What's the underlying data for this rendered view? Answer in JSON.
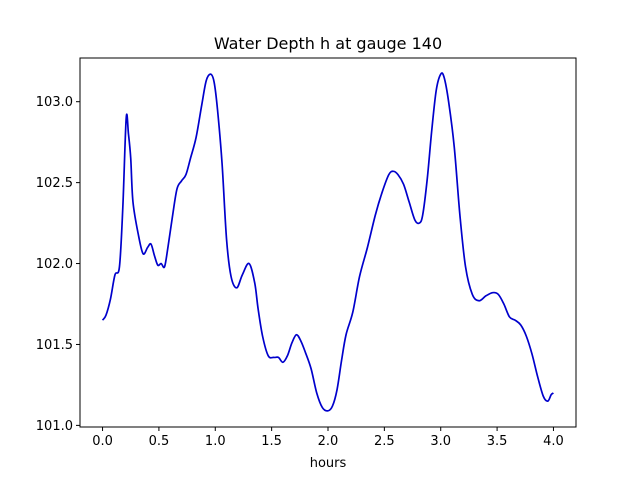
{
  "chart_data": {
    "type": "line",
    "title": "Water Depth h at gauge 140",
    "xlabel": "hours",
    "ylabel": "",
    "xlim": [
      -0.2,
      4.2
    ],
    "ylim": [
      100.99,
      103.27
    ],
    "grid": false,
    "x_ticks": [
      0.0,
      0.5,
      1.0,
      1.5,
      2.0,
      2.5,
      3.0,
      3.5,
      4.0
    ],
    "x_tick_labels": [
      "0.0",
      "0.5",
      "1.0",
      "1.5",
      "2.0",
      "2.5",
      "3.0",
      "3.5",
      "4.0"
    ],
    "y_ticks": [
      101.0,
      101.5,
      102.0,
      102.5,
      103.0
    ],
    "y_tick_labels": [
      "101.0",
      "101.5",
      "102.0",
      "102.5",
      "103.0"
    ],
    "series": [
      {
        "name": "",
        "color": "#0000cc",
        "x": [
          0.0,
          0.03,
          0.07,
          0.11,
          0.15,
          0.18,
          0.21,
          0.23,
          0.25,
          0.27,
          0.32,
          0.36,
          0.4,
          0.43,
          0.46,
          0.49,
          0.52,
          0.55,
          0.58,
          0.62,
          0.66,
          0.7,
          0.74,
          0.78,
          0.83,
          0.88,
          0.92,
          0.96,
          0.99,
          1.02,
          1.06,
          1.1,
          1.14,
          1.19,
          1.24,
          1.3,
          1.35,
          1.38,
          1.42,
          1.47,
          1.52,
          1.56,
          1.6,
          1.64,
          1.68,
          1.72,
          1.76,
          1.8,
          1.85,
          1.9,
          1.95,
          2.0,
          2.04,
          2.08,
          2.12,
          2.16,
          2.22,
          2.28,
          2.35,
          2.42,
          2.48,
          2.54,
          2.58,
          2.62,
          2.67,
          2.72,
          2.77,
          2.81,
          2.84,
          2.88,
          2.92,
          2.96,
          3.0,
          3.03,
          3.07,
          3.12,
          3.17,
          3.22,
          3.28,
          3.34,
          3.4,
          3.46,
          3.51,
          3.56,
          3.61,
          3.66,
          3.71,
          3.76,
          3.81,
          3.86,
          3.91,
          3.95,
          3.98,
          4.0
        ],
        "y": [
          101.65,
          101.68,
          101.78,
          101.93,
          101.98,
          102.35,
          102.9,
          102.8,
          102.65,
          102.38,
          102.17,
          102.06,
          102.1,
          102.12,
          102.05,
          101.99,
          102.0,
          101.98,
          102.1,
          102.29,
          102.46,
          102.51,
          102.55,
          102.65,
          102.78,
          102.98,
          103.13,
          103.17,
          103.12,
          102.95,
          102.62,
          102.15,
          101.92,
          101.85,
          101.93,
          102.0,
          101.88,
          101.72,
          101.55,
          101.43,
          101.42,
          101.42,
          101.39,
          101.43,
          101.51,
          101.56,
          101.52,
          101.45,
          101.35,
          101.2,
          101.11,
          101.09,
          101.12,
          101.22,
          101.4,
          101.56,
          101.7,
          101.92,
          102.1,
          102.3,
          102.44,
          102.55,
          102.57,
          102.55,
          102.49,
          102.38,
          102.27,
          102.25,
          102.3,
          102.52,
          102.82,
          103.07,
          103.17,
          103.15,
          103.0,
          102.72,
          102.3,
          101.98,
          101.81,
          101.77,
          101.8,
          101.82,
          101.81,
          101.75,
          101.67,
          101.65,
          101.62,
          101.55,
          101.44,
          101.3,
          101.18,
          101.15,
          101.19,
          101.2
        ]
      }
    ]
  }
}
